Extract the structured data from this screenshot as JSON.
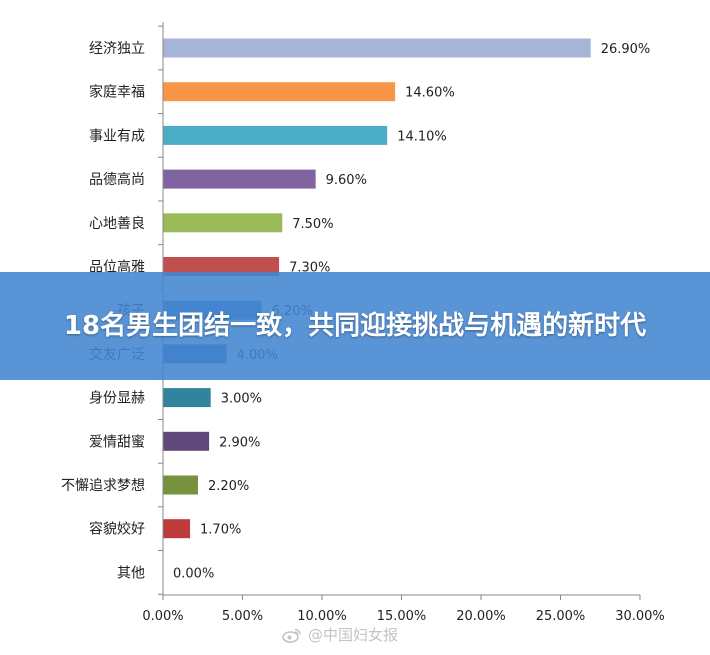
{
  "banner": {
    "title": "18名男生团结一致，共同迎接挑战与机遇的新时代"
  },
  "watermark": {
    "text": "@中国妇女报",
    "icon": "weibo-icon"
  },
  "chart_data": {
    "type": "bar",
    "orientation": "horizontal",
    "categories": [
      "经济独立",
      "家庭幸福",
      "事业有成",
      "品德高尚",
      "心地善良",
      "品位高雅",
      "孩子",
      "交友广泛",
      "身份显赫",
      "爱情甜蜜",
      "不懈追求梦想",
      "容貌姣好",
      "其他"
    ],
    "values": [
      26.9,
      14.6,
      14.1,
      9.6,
      7.5,
      7.3,
      6.2,
      4.0,
      3.0,
      2.9,
      2.2,
      1.7,
      0.0
    ],
    "value_labels": [
      "26.90%",
      "14.60%",
      "14.10%",
      "9.60%",
      "7.50%",
      "7.30%",
      "6.20%",
      "4.00%",
      "3.00%",
      "2.90%",
      "2.20%",
      "1.70%",
      "0.00%"
    ],
    "colors": [
      "#a6b4d7",
      "#f79646",
      "#4bacc6",
      "#8064a2",
      "#9bbb59",
      "#c0504d",
      "#4f81bd",
      "#4a6fa0",
      "#31849b",
      "#60497a",
      "#76923c",
      "#be3b3b",
      "#4f81bd"
    ],
    "xlim": [
      0,
      30
    ],
    "xticks": [
      0,
      5,
      10,
      15,
      20,
      25,
      30
    ],
    "xtick_labels": [
      "0.00%",
      "5.00%",
      "10.00%",
      "15.00%",
      "20.00%",
      "25.00%",
      "30.00%"
    ],
    "title": "",
    "xlabel": "",
    "ylabel": "",
    "grid": false,
    "legend": "none"
  }
}
